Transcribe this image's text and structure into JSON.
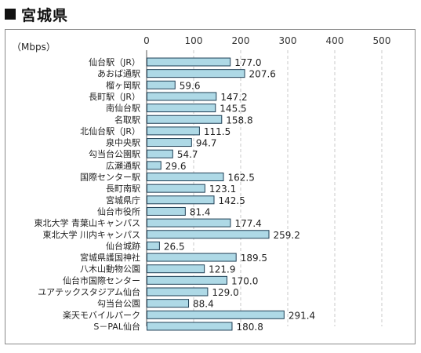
{
  "page": {
    "heading": "宮城県"
  },
  "chart_data": {
    "type": "bar",
    "orientation": "horizontal",
    "unit_label": "（Mbps）",
    "xlim": [
      0,
      500
    ],
    "ticks": [
      0,
      100,
      200,
      300,
      400,
      500
    ],
    "grid": true,
    "bar_color": "#aed9e6",
    "bar_border_color": "#1f3f55",
    "categories": [
      "仙台駅（JR）",
      "あおば通駅",
      "榴ヶ岡駅",
      "長町駅（JR）",
      "南仙台駅",
      "名取駅",
      "北仙台駅（JR）",
      "泉中央駅",
      "勾当台公園駅",
      "広瀬通駅",
      "国際センター駅",
      "長町南駅",
      "宮城県庁",
      "仙台市役所",
      "東北大学 青葉山キャンパス",
      "東北大学 川内キャンパス",
      "仙台城跡",
      "宮城県護国神社",
      "八木山動物公園",
      "仙台市国際センター",
      "ユアテックスタジアム仙台",
      "勾当台公園",
      "楽天モバイルパーク",
      "S－PAL仙台"
    ],
    "values": [
      177.0,
      207.6,
      59.6,
      147.2,
      145.5,
      158.8,
      111.5,
      94.7,
      54.7,
      29.6,
      162.5,
      123.1,
      142.5,
      81.4,
      177.4,
      259.2,
      26.5,
      189.5,
      121.9,
      170.0,
      129.0,
      88.4,
      291.4,
      180.8
    ],
    "value_labels": [
      "177.0",
      "207.6",
      "59.6",
      "147.2",
      "145.5",
      "158.8",
      "111.5",
      "94.7",
      "54.7",
      "29.6",
      "162.5",
      "123.1",
      "142.5",
      "81.4",
      "177.4",
      "259.2",
      "26.5",
      "189.5",
      "121.9",
      "170.0",
      "129.0",
      "88.4",
      "291.4",
      "180.8"
    ]
  }
}
